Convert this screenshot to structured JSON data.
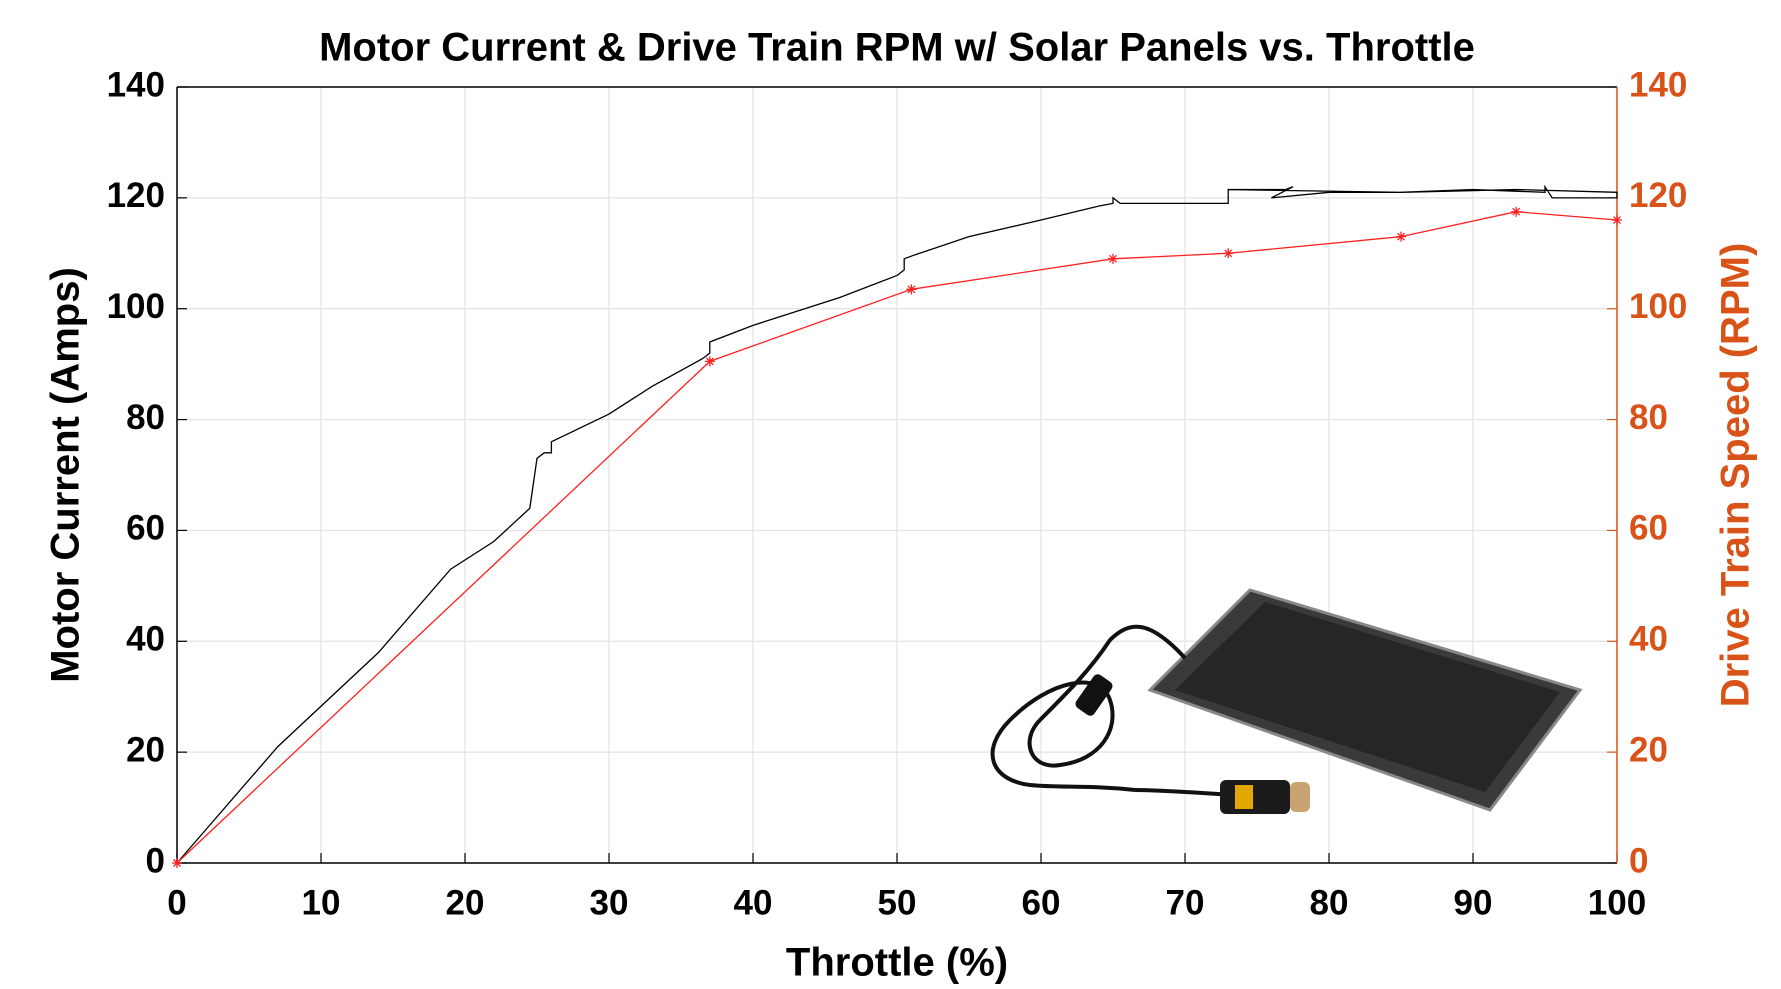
{
  "chart_data": {
    "type": "line",
    "title": "Motor Current & Drive Train RPM w/ Solar Panels vs. Throttle",
    "xlabel": "Throttle (%)",
    "ylabel": "Motor Current (Amps)",
    "y2label": "Drive Train Speed (RPM)",
    "y2_color": "#d95319",
    "xlim": [
      0,
      100
    ],
    "xticks": [
      0,
      10,
      20,
      30,
      40,
      50,
      60,
      70,
      80,
      90,
      100
    ],
    "ylim": [
      0,
      140
    ],
    "yticks": [
      0,
      20,
      40,
      60,
      80,
      100,
      120,
      140
    ],
    "y2lim": [
      0,
      140
    ],
    "y2ticks": [
      0,
      20,
      40,
      60,
      80,
      100,
      120,
      140
    ],
    "grid": true,
    "series": [
      {
        "name": "Motor Current",
        "color": "#000000",
        "axis": "y",
        "marker": "none",
        "x": [
          0,
          7,
          14,
          19,
          22,
          24.5,
          25,
          25.5,
          26,
          26,
          30,
          33,
          36.5,
          37,
          37,
          40,
          46,
          50,
          50.5,
          50.5,
          51,
          55,
          60,
          64,
          65,
          65,
          65.5,
          73,
          73,
          77,
          77.5,
          76,
          80,
          85,
          90,
          95,
          95,
          95.5,
          100,
          100,
          93,
          85,
          73
        ],
        "values": [
          0,
          21,
          38,
          53,
          58,
          64,
          73,
          74,
          74,
          76,
          81,
          86,
          91,
          92,
          94,
          97,
          102,
          106,
          107,
          109,
          109.5,
          113,
          116,
          118.5,
          119,
          120,
          119,
          119,
          121.5,
          121.5,
          122,
          120,
          121,
          121,
          121.5,
          121,
          122,
          120,
          120,
          121,
          121.5,
          121,
          121.5
        ]
      },
      {
        "name": "Drive Train Speed",
        "color": "#ff2020",
        "axis": "y2",
        "marker": "star",
        "x": [
          0,
          37,
          51,
          65,
          73,
          85,
          93,
          100
        ],
        "values": [
          0,
          90.5,
          103.5,
          109,
          110,
          113,
          117.5,
          116
        ]
      }
    ]
  }
}
